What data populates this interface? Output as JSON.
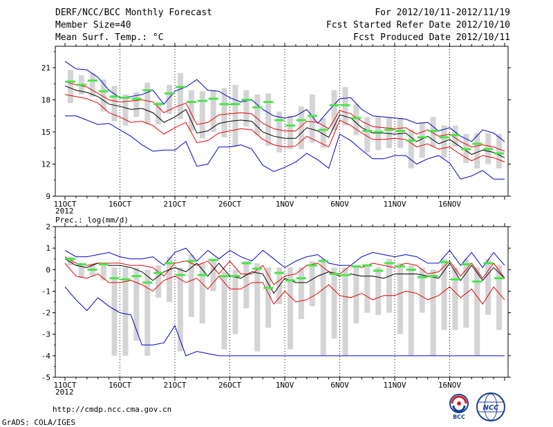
{
  "header": {
    "title": "DERF/NCC/BCC Monthly Forecast",
    "member_size": "Member Size=40",
    "variable1": "Mean Surf. Temp.: °C",
    "period": "For 2012/10/11-2012/11/19",
    "started": "Fcst Started Refer Date 2012/10/10",
    "produced": "Fcst Produced Date 2012/10/11"
  },
  "panel2_label": "Prec.: log(mm/d)",
  "footer": {
    "url": "http://cmdp.ncc.cma.gov.cn",
    "grads": "GrADS: COLA/IGES",
    "logo_bcc": "BCC",
    "logo_ncc": "NCC"
  },
  "colors": {
    "box": "#d4d4d4",
    "green": "#46e646",
    "ens_mean": "#000000",
    "percentile": "#e60000",
    "extreme": "#0000c8",
    "grid": "#000000"
  },
  "chart_data": [
    {
      "type": "line",
      "title": "Mean Surf. Temp.: °C",
      "xlabel": "",
      "ylabel": "",
      "x_tick_labels": [
        "11OCT",
        "16OCT",
        "21OCT",
        "26OCT",
        "1NOV",
        "6NOV",
        "11NOV",
        "16NOV"
      ],
      "x_year_label": "2012",
      "y_ticks": [
        "9",
        "12",
        "15",
        "18",
        "21"
      ],
      "ylim": [
        9,
        23
      ],
      "days": 40,
      "series": [
        {
          "name": "max",
          "values": [
            21.6,
            20.9,
            20.8,
            20.1,
            18.9,
            18.2,
            18.3,
            18.5,
            18.9,
            17.6,
            18.8,
            19.2,
            19.9,
            18.9,
            18.8,
            18.2,
            17.8,
            18.0,
            17.1,
            16.5,
            16.3,
            16.5,
            17.1,
            15.8,
            17.0,
            18.1,
            18.2,
            17.1,
            16.5,
            16.4,
            16.3,
            16.2,
            15.8,
            15.9,
            15.1,
            15.4,
            14.6,
            14.1,
            15.2,
            14.9,
            14.1
          ]
        },
        {
          "name": "p90",
          "values": [
            19.7,
            19.4,
            19.2,
            18.6,
            18.0,
            17.8,
            17.9,
            18.0,
            17.8,
            16.8,
            17.3,
            17.7,
            15.7,
            15.9,
            16.6,
            16.7,
            16.8,
            16.7,
            15.8,
            15.3,
            15.1,
            15.1,
            16.0,
            15.9,
            15.3,
            17.0,
            16.7,
            16.0,
            15.5,
            15.4,
            15.3,
            15.4,
            14.8,
            15.2,
            14.6,
            14.8,
            14.1,
            13.6,
            13.8,
            13.6,
            13.2
          ]
        },
        {
          "name": "mean",
          "values": [
            19.3,
            18.9,
            18.7,
            18.3,
            17.6,
            17.4,
            17.1,
            17.2,
            16.8,
            15.9,
            16.4,
            17.1,
            14.9,
            15.1,
            15.8,
            16.0,
            16.1,
            16.0,
            15.0,
            14.6,
            14.4,
            14.4,
            15.4,
            15.1,
            14.5,
            16.6,
            16.3,
            15.4,
            14.9,
            14.9,
            14.8,
            14.9,
            14.1,
            14.6,
            13.9,
            14.3,
            13.6,
            12.9,
            13.3,
            13.1,
            12.6
          ]
        },
        {
          "name": "p10",
          "values": [
            18.5,
            18.3,
            18.1,
            17.7,
            16.8,
            16.4,
            15.9,
            16.0,
            15.6,
            14.8,
            15.4,
            15.9,
            14.0,
            14.2,
            14.9,
            15.1,
            15.3,
            15.2,
            14.3,
            13.8,
            13.6,
            13.7,
            14.6,
            14.1,
            13.6,
            16.1,
            15.6,
            14.9,
            14.3,
            14.3,
            14.4,
            14.3,
            13.6,
            13.9,
            13.4,
            13.6,
            12.9,
            12.3,
            12.8,
            12.6,
            12.2
          ]
        },
        {
          "name": "min",
          "values": [
            16.5,
            16.5,
            16.1,
            15.7,
            15.8,
            15.2,
            14.6,
            13.8,
            13.2,
            13.3,
            13.3,
            14.1,
            11.8,
            12.0,
            13.6,
            13.6,
            13.8,
            13.4,
            11.9,
            11.3,
            11.7,
            12.2,
            13.0,
            12.4,
            11.6,
            14.8,
            14.2,
            13.3,
            12.5,
            12.5,
            12.8,
            12.8,
            12.0,
            12.5,
            12.8,
            12.1,
            10.6,
            10.9,
            11.4,
            10.6,
            10.6
          ]
        },
        {
          "name": "obs_bar",
          "values": [
            19.7,
            19.4,
            19.8,
            18.8,
            18.3,
            18.2,
            18.1,
            18.9,
            17.6,
            18.6,
            19.2,
            17.8,
            17.9,
            18.1,
            17.6,
            17.6,
            18.0,
            17.3,
            17.8,
            16.1,
            15.6,
            16.1,
            16.5,
            15.2,
            17.5,
            17.5,
            16.3,
            15.1,
            15.0,
            15.2,
            15.1,
            14.2,
            14.5,
            15.1,
            14.5,
            14.7,
            13.4,
            13.9,
            13.4,
            13.0
          ]
        },
        {
          "name": "box_top",
          "values": [
            20.8,
            20.3,
            20.5,
            19.9,
            19.3,
            18.5,
            18.7,
            19.6,
            17.8,
            19.4,
            20.5,
            18.9,
            18.8,
            18.9,
            19.1,
            19.4,
            18.9,
            18.5,
            18.6,
            16.9,
            16.5,
            17.4,
            18.5,
            16.3,
            18.9,
            19.2,
            17.6,
            16.4,
            16.4,
            16.4,
            16.3,
            15.2,
            15.9,
            16.4,
            15.6,
            15.6,
            14.8,
            14.9,
            14.9,
            14.8
          ]
        },
        {
          "name": "box_bottom",
          "values": [
            17.7,
            18.5,
            18.3,
            16.9,
            16.0,
            15.6,
            16.4,
            15.7,
            15.7,
            16.7,
            16.2,
            15.1,
            14.4,
            15.0,
            14.5,
            13.6,
            15.5,
            14.7,
            13.7,
            13.1,
            13.4,
            13.4,
            14.0,
            13.5,
            15.2,
            15.6,
            14.7,
            13.1,
            13.3,
            13.5,
            13.5,
            11.6,
            12.6,
            13.6,
            12.6,
            13.6,
            12.1,
            11.6,
            12.0,
            11.6
          ]
        }
      ]
    },
    {
      "type": "line",
      "title": "Prec.: log(mm/d)",
      "xlabel": "",
      "ylabel": "",
      "x_tick_labels": [
        "11OCT",
        "16OCT",
        "21OCT",
        "26OCT",
        "1NOV",
        "6NOV",
        "11NOV",
        "16NOV"
      ],
      "x_year_label": "2012",
      "y_ticks": [
        "-5",
        "-4",
        "-3",
        "-2",
        "-1",
        "0",
        "1",
        "2"
      ],
      "ylim": [
        -5,
        2
      ],
      "days": 40,
      "series": [
        {
          "name": "max",
          "values": [
            0.9,
            0.6,
            0.6,
            0.7,
            0.8,
            0.6,
            0.5,
            0.5,
            0.6,
            0.2,
            0.8,
            1.0,
            0.4,
            0.9,
            0.5,
            0.9,
            0.6,
            0.4,
            0.9,
            0.5,
            0.1,
            0.4,
            0.6,
            0.7,
            0.3,
            0.2,
            0.2,
            0.6,
            0.8,
            0.7,
            0.6,
            0.7,
            0.6,
            0.3,
            0.3,
            0.9,
            0.2,
            0.8,
            0.1,
            0.8,
            0.2
          ]
        },
        {
          "name": "p90",
          "values": [
            0.6,
            0.3,
            0.2,
            0.3,
            0.3,
            0.3,
            0.2,
            0.2,
            0.1,
            -0.3,
            0.3,
            0.4,
            0.2,
            0.4,
            -0.2,
            0.4,
            -0.2,
            -0.2,
            0.2,
            -0.7,
            -0.3,
            -0.2,
            0.2,
            0.3,
            -0.1,
            -0.2,
            0.2,
            0.1,
            0.3,
            0.2,
            0.1,
            0.3,
            0.2,
            -0.2,
            -0.1,
            0.4,
            -0.3,
            0.3,
            -0.4,
            0.3,
            -0.4
          ]
        },
        {
          "name": "mean",
          "values": [
            0.5,
            0.2,
            0.1,
            0.3,
            0.2,
            0.2,
            0.1,
            -0.1,
            -0.5,
            -0.1,
            0.1,
            -0.1,
            0.3,
            -0.3,
            0.3,
            -0.3,
            -0.4,
            -0.1,
            -0.2,
            -1.1,
            -0.4,
            -0.6,
            -0.6,
            -0.3,
            -0.1,
            -0.3,
            -0.2,
            -0.3,
            -0.3,
            -0.4,
            -0.2,
            -0.2,
            -0.2,
            -0.3,
            -0.4,
            0.3,
            -0.5,
            0.2,
            -0.5,
            0.1,
            -0.4
          ]
        },
        {
          "name": "p10",
          "values": [
            0.3,
            -0.3,
            -0.4,
            -0.2,
            -0.6,
            -0.6,
            -0.5,
            -0.7,
            -1.0,
            -0.5,
            -0.3,
            -0.6,
            -0.4,
            -0.9,
            -0.3,
            -0.9,
            -0.9,
            -0.6,
            -0.6,
            -1.6,
            -1.0,
            -1.5,
            -1.4,
            -1.1,
            -0.7,
            -1.2,
            -1.3,
            -1.1,
            -1.4,
            -1.2,
            -1.2,
            -1.0,
            -1.1,
            -1.4,
            -1.2,
            -0.8,
            -1.3,
            -0.9,
            -1.6,
            -0.8,
            -1.4
          ]
        },
        {
          "name": "min",
          "values": [
            -0.8,
            -1.4,
            -1.9,
            -1.3,
            -1.7,
            -2.0,
            -2.1,
            -3.5,
            -3.5,
            -3.4,
            -2.6,
            -4.0,
            -3.8,
            -3.9,
            -4.0,
            -4.0,
            -4.0,
            -4.0,
            -4.0,
            -4.0,
            -4.0,
            -4.0,
            -4.0,
            -4.0,
            -4.0,
            -4.0,
            -4.0,
            -4.0,
            -4.0,
            -4.0,
            -4.0,
            -4.0,
            -4.0,
            -4.0,
            -4.0,
            -4.0,
            -4.0,
            -4.0,
            -4.0,
            -4.0,
            -4.0
          ]
        },
        {
          "name": "obs_bar",
          "values": [
            0.5,
            0.25,
            0.0,
            0.25,
            -0.4,
            -0.45,
            -0.3,
            -0.6,
            -0.15,
            0.3,
            -0.25,
            0.4,
            -0.25,
            0.45,
            -0.3,
            -0.3,
            0.3,
            0.05,
            -0.85,
            -0.15,
            -0.5,
            -0.4,
            0.2,
            0.4,
            -0.2,
            -0.25,
            0.15,
            0.2,
            -0.05,
            0.3,
            0.15,
            0.0,
            -0.35,
            -0.3,
            0.35,
            -0.45,
            0.25,
            -0.55,
            0.3,
            -0.4
          ]
        },
        {
          "name": "box_top",
          "values": [
            0.6,
            0.3,
            0.2,
            0.3,
            0.1,
            0.1,
            0.1,
            0.0,
            0.2,
            0.6,
            0.1,
            0.7,
            0.3,
            0.5,
            -0.1,
            0.0,
            0.4,
            0.3,
            0.1,
            0.1,
            0.1,
            0.1,
            0.4,
            0.5,
            0.1,
            0.1,
            0.2,
            0.2,
            0.1,
            0.5,
            0.3,
            0.2,
            0.1,
            0.0,
            0.5,
            0.1,
            0.5,
            0.1,
            0.5,
            0.2
          ]
        },
        {
          "name": "box_bottom",
          "values": [
            0.2,
            -0.4,
            -0.3,
            -0.5,
            -4.0,
            -4.0,
            -3.3,
            -4.0,
            -1.3,
            -1.5,
            -3.8,
            -2.2,
            -2.5,
            -1.0,
            -3.7,
            -3.0,
            -1.8,
            -3.8,
            -2.7,
            -1.6,
            -3.7,
            -2.3,
            -1.7,
            -4.0,
            -3.2,
            -4.0,
            -2.5,
            -2.0,
            -2.1,
            -2.0,
            -3.0,
            -4.0,
            -2.0,
            -4.0,
            -2.8,
            -2.8,
            -2.7,
            -4.0,
            -2.1,
            -2.8
          ]
        }
      ]
    }
  ]
}
